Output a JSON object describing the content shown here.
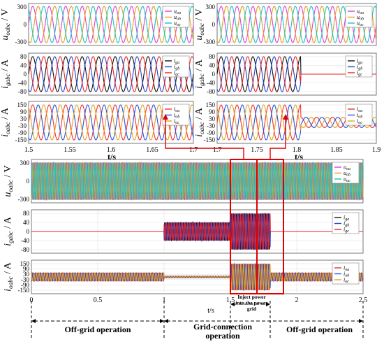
{
  "chart_data": {
    "type": "line",
    "colors": {
      "a": "#e23fd2",
      "b": "#e0a020",
      "c": "#19c4c4",
      "ga": "#111111",
      "gb": "#2244cc",
      "gc": "#ee2222",
      "ca": "#ee3333",
      "cb": "#2255dd",
      "cc": "#e8a020",
      "highlight": "#e00000"
    },
    "top_left": {
      "xlim": [
        1.5,
        1.7
      ],
      "xticks": [
        "1.5",
        "1.55",
        "1.6",
        "1.65",
        "1.7"
      ],
      "xlabel": "t/s",
      "panels": [
        {
          "ylabel": "u",
          "sub": "oabc",
          "unit": "/ V",
          "yticks": [
            "300",
            "0",
            "-300"
          ],
          "ylim": [
            -300,
            300
          ],
          "legend": [
            {
              "base": "u",
              "sub": "oa"
            },
            {
              "base": "u",
              "sub": "ob"
            },
            {
              "base": "u",
              "sub": "oc"
            }
          ],
          "amplitude": 311,
          "frequency_hz": 50
        },
        {
          "ylabel": "i",
          "sub": "gabc",
          "unit": "/ A",
          "yticks": [
            "80",
            "40",
            "0",
            "-40",
            "-80"
          ],
          "ylim": [
            -80,
            80
          ],
          "legend": [
            {
              "base": "i",
              "sub": "ga"
            },
            {
              "base": "i",
              "sub": "gb"
            },
            {
              "base": "i",
              "sub": "gc"
            }
          ],
          "amplitude": 80,
          "frequency_hz": 50
        },
        {
          "ylabel": "i",
          "sub": "oabc",
          "unit": "/ A",
          "yticks": [
            "150",
            "90",
            "30",
            "-30",
            "-90",
            "-150"
          ],
          "ylim": [
            -150,
            150
          ],
          "legend": [
            {
              "base": "i",
              "sub": "oa"
            },
            {
              "base": "i",
              "sub": "ob"
            },
            {
              "base": "i",
              "sub": "oc"
            }
          ],
          "amplitude": 150,
          "frequency_hz": 50
        }
      ]
    },
    "top_right": {
      "xlim": [
        1.7,
        1.9
      ],
      "xticks": [
        "1.7",
        "1.75",
        "1.8",
        "1.85",
        "1.9"
      ],
      "xlabel": "t/s",
      "event_time": 1.805,
      "panels": [
        {
          "ylabel": "u",
          "sub": "oabc",
          "unit": "/ V",
          "yticks": [
            "300",
            "0",
            "-300"
          ],
          "legend": [
            {
              "base": "u",
              "sub": "oa"
            },
            {
              "base": "u",
              "sub": "ob"
            },
            {
              "base": "u",
              "sub": "oc"
            }
          ],
          "amplitude_before": 311,
          "amplitude_after": 311
        },
        {
          "ylabel": "i",
          "sub": "gabc",
          "unit": "/ A",
          "yticks": [
            "80",
            "40",
            "0",
            "-40",
            "-80"
          ],
          "legend": [
            {
              "base": "i",
              "sub": "ga"
            },
            {
              "base": "i",
              "sub": "gb"
            },
            {
              "base": "i",
              "sub": "gc"
            }
          ],
          "amplitude_before": 80,
          "amplitude_after": 0
        },
        {
          "ylabel": "i",
          "sub": "oabc",
          "unit": "/ A",
          "yticks": [
            "150",
            "90",
            "30",
            "-30",
            "-90",
            "-150"
          ],
          "legend": [
            {
              "base": "i",
              "sub": "oa"
            },
            {
              "base": "i",
              "sub": "ob"
            },
            {
              "base": "i",
              "sub": "oc"
            }
          ],
          "amplitude_before": 150,
          "amplitude_after": 45
        }
      ]
    },
    "bottom": {
      "xlim": [
        0,
        2.5
      ],
      "xticks": [
        "0",
        "0.5",
        "1",
        "1.5",
        "2",
        "2.5"
      ],
      "xlabel": "t/s",
      "grid_connect_start": 1.0,
      "inject_start": 1.5,
      "inject_end": 1.8,
      "highlight_ranges": [
        [
          1.5,
          1.7
        ],
        [
          1.7,
          1.9
        ]
      ],
      "panels": [
        {
          "ylabel": "u",
          "sub": "oabc",
          "unit": "/ V",
          "yticks": [
            "300",
            "0",
            "-300"
          ],
          "legend": [
            {
              "base": "u",
              "sub": "oa"
            },
            {
              "base": "u",
              "sub": "ob"
            },
            {
              "base": "u",
              "sub": "oc"
            }
          ]
        },
        {
          "ylabel": "i",
          "sub": "gabc",
          "unit": "/ A",
          "yticks": [
            "80",
            "40",
            "0",
            "-40",
            "-80"
          ],
          "legend": [
            {
              "base": "i",
              "sub": "ga"
            },
            {
              "base": "i",
              "sub": "gb"
            },
            {
              "base": "i",
              "sub": "gc"
            }
          ],
          "amplitude_offgrid": 0,
          "amplitude_grid": 40,
          "amplitude_inject": 80
        },
        {
          "ylabel": "i",
          "sub": "oabc",
          "unit": "/ A",
          "yticks": [
            "150",
            "90",
            "30",
            "-30",
            "-90",
            "-150"
          ],
          "legend": [
            {
              "base": "i",
              "sub": "oa"
            },
            {
              "base": "i",
              "sub": "ob"
            },
            {
              "base": "i",
              "sub": "oc"
            }
          ],
          "amplitude_offgrid": 45,
          "amplitude_grid": 10,
          "amplitude_inject": 150
        }
      ]
    },
    "annotations": {
      "inject_label_lines": [
        "Inject power",
        "into the power",
        "grid"
      ],
      "phase_labels": [
        {
          "lines": [
            "Off-grid operation"
          ]
        },
        {
          "lines": [
            "Grid-connection",
            "operation"
          ]
        },
        {
          "lines": [
            "Off-grid operation"
          ]
        }
      ]
    }
  }
}
